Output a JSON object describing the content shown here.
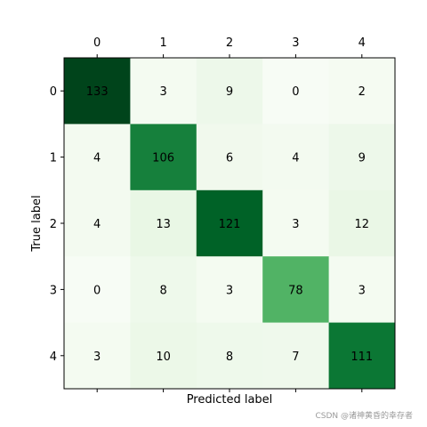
{
  "chart_data": {
    "type": "heatmap",
    "x_categories": [
      "0",
      "1",
      "2",
      "3",
      "4"
    ],
    "y_categories": [
      "0",
      "1",
      "2",
      "3",
      "4"
    ],
    "values": [
      [
        133,
        3,
        9,
        0,
        2
      ],
      [
        4,
        106,
        6,
        4,
        9
      ],
      [
        4,
        13,
        121,
        3,
        12
      ],
      [
        0,
        8,
        3,
        78,
        3
      ],
      [
        3,
        10,
        8,
        7,
        111
      ]
    ],
    "xlabel": "Predicted label",
    "ylabel": "True label",
    "colormap": "Greens",
    "colors": {
      "low": "#f7fcf5",
      "high": "#00441b"
    },
    "grid": false,
    "x_ticks_position": "top"
  },
  "watermark": "CSDN @诸神黄昏的幸存者"
}
